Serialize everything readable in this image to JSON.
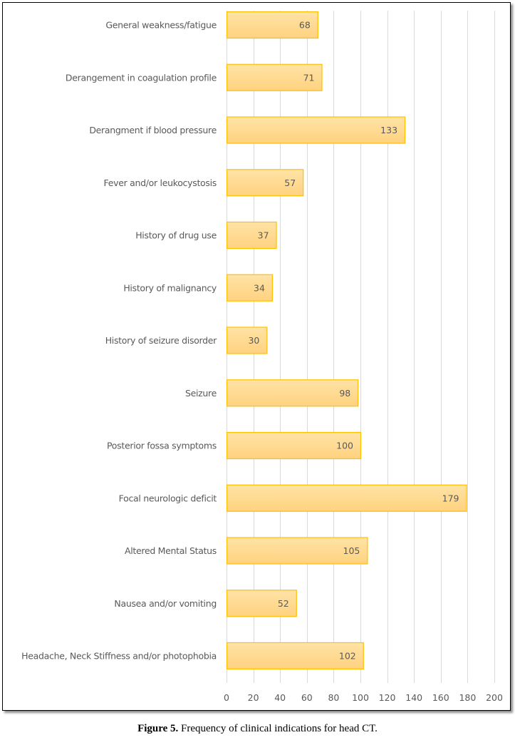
{
  "chart_data": {
    "type": "bar",
    "orientation": "horizontal",
    "title": "",
    "xlabel": "",
    "ylabel": "",
    "categories": [
      "General weakness/fatigue",
      "Derangement in coagulation profile",
      "Derangment if blood pressure",
      "Fever and/or leukocystosis",
      "History of drug use",
      "History of malignancy",
      "History of seizure disorder",
      "Seizure",
      "Posterior fossa symptoms",
      "Focal neurologic deficit",
      "Altered Mental Status",
      "Nausea and/or vomiting",
      "Headache, Neck Stiffness and/or photophobia"
    ],
    "values": [
      68,
      71,
      133,
      57,
      37,
      34,
      30,
      98,
      100,
      179,
      105,
      52,
      102
    ],
    "xlim": [
      0,
      200
    ],
    "xticks": [
      0,
      20,
      40,
      60,
      80,
      100,
      120,
      140,
      160,
      180,
      200
    ],
    "grid": "vertical",
    "data_labels": "inside-end",
    "legend": "none",
    "colors": {
      "bar_fill_top": "#FFE3A6",
      "bar_fill_bottom": "#FFD27F",
      "bar_border": "#FFC000",
      "grid": "#D9D9D9",
      "text": "#595959"
    }
  },
  "caption": {
    "label": "Figure 5.",
    "text": " Frequency of clinical indications for head CT."
  }
}
